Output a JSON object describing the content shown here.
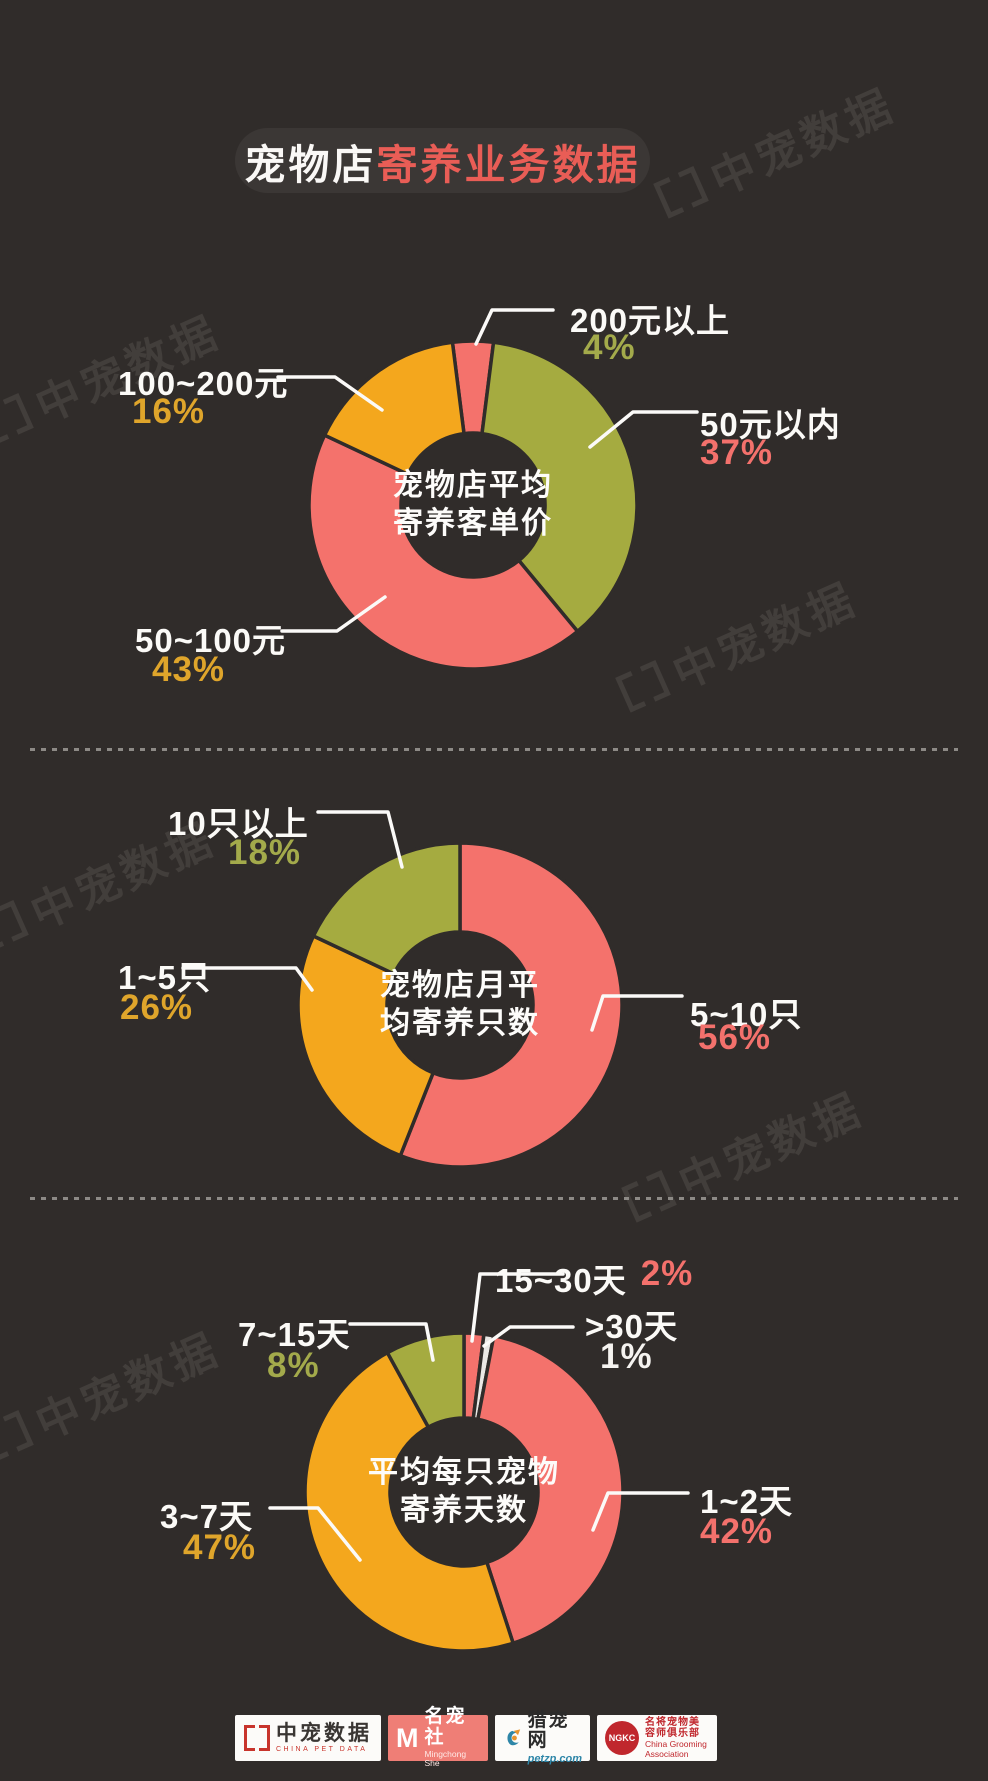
{
  "title": {
    "part1": "宠物店",
    "part2": "寄养业务数据"
  },
  "watermark": {
    "text": "中宠数据",
    "icon": "bracket-logo"
  },
  "colors": {
    "background": "#302C2A",
    "title_box": "#3B3735",
    "title_accent": "#E95D56",
    "salmon": "#F4726C",
    "olive": "#A5AB40",
    "yellow": "#F4A71D",
    "white_slice": "#EAE8E5",
    "pct_gold": "#DFA52B",
    "pct_olive": "#A3AA4B",
    "pct_salmon": "#F3716C",
    "leader_line": "#FBFAF8",
    "separator": "#8D8A86"
  },
  "chart_data": [
    {
      "type": "donut",
      "title_lines": [
        "宠物店平均",
        "寄养客单价"
      ],
      "slices": [
        {
          "label": "200元以上",
          "value": 4,
          "pct_text": "4%",
          "color": "#F4726C",
          "pct_color": "#A3AA4B"
        },
        {
          "label": "50元以内",
          "value": 37,
          "pct_text": "37%",
          "color": "#A5AB40",
          "pct_color": "#F3716C"
        },
        {
          "label": "50~100元",
          "value": 43,
          "pct_text": "43%",
          "color": "#F4726C",
          "pct_color": "#DFA52B"
        },
        {
          "label": "100~200元",
          "value": 16,
          "pct_text": "16%",
          "color": "#F4A71D",
          "pct_color": "#DFA52B"
        }
      ]
    },
    {
      "type": "donut",
      "title_lines": [
        "宠物店月平",
        "均寄养只数"
      ],
      "slices": [
        {
          "label": "5~10只",
          "value": 56,
          "pct_text": "56%",
          "color": "#F4726C",
          "pct_color": "#F3716C"
        },
        {
          "label": "1~5只",
          "value": 26,
          "pct_text": "26%",
          "color": "#F4A71D",
          "pct_color": "#DFA52B"
        },
        {
          "label": "10只以上",
          "value": 18,
          "pct_text": "18%",
          "color": "#A5AB40",
          "pct_color": "#A3AA4B"
        }
      ]
    },
    {
      "type": "donut",
      "title_lines": [
        "平均每只宠物",
        "寄养天数"
      ],
      "slices": [
        {
          "label": "15~30天",
          "value": 2,
          "pct_text": "2%",
          "color": "#F4726C",
          "pct_color": "#F3716C"
        },
        {
          "label": ">30天",
          "value": 1,
          "pct_text": "1%",
          "color": "#EAE8E5",
          "pct_color": "#F5F3F0"
        },
        {
          "label": "1~2天",
          "value": 42,
          "pct_text": "42%",
          "color": "#F4726C",
          "pct_color": "#F3716C"
        },
        {
          "label": "3~7天",
          "value": 47,
          "pct_text": "47%",
          "color": "#F4A71D",
          "pct_color": "#DFA52B"
        },
        {
          "label": "7~15天",
          "value": 8,
          "pct_text": "8%",
          "color": "#A5AB40",
          "pct_color": "#A3AA4B"
        }
      ]
    }
  ],
  "footer_logos": [
    {
      "name": "中宠数据",
      "subtext": "CHINA PET DATA"
    },
    {
      "name": "名宠社",
      "subtext": "Mingchong She",
      "icon_letter": "M"
    },
    {
      "name": "猎宠网",
      "subtext": "petzp.com"
    },
    {
      "name": "名将宠物美容师俱乐部",
      "subtext": "China Grooming Association",
      "badge": "NGKC"
    }
  ]
}
